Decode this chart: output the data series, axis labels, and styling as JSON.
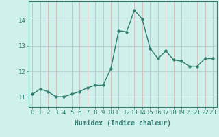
{
  "x": [
    0,
    1,
    2,
    3,
    4,
    5,
    6,
    7,
    8,
    9,
    10,
    11,
    12,
    13,
    14,
    15,
    16,
    17,
    18,
    19,
    20,
    21,
    22,
    23
  ],
  "y": [
    11.1,
    11.3,
    11.2,
    11.0,
    11.0,
    11.1,
    11.2,
    11.35,
    11.45,
    11.45,
    12.1,
    13.6,
    13.55,
    14.4,
    14.05,
    12.9,
    12.5,
    12.8,
    12.45,
    12.4,
    12.2,
    12.2,
    12.5,
    12.5
  ],
  "line_color": "#2e7d6e",
  "bg_color": "#cff0eb",
  "vgrid_color": "#d4b8b8",
  "hgrid_color": "#b8cece",
  "xlabel": "Humidex (Indice chaleur)",
  "ylim": [
    10.6,
    14.75
  ],
  "xlim": [
    -0.5,
    23.5
  ],
  "yticks": [
    11,
    12,
    13,
    14
  ],
  "xtick_labels": [
    "0",
    "1",
    "2",
    "3",
    "4",
    "5",
    "6",
    "7",
    "8",
    "9",
    "10",
    "11",
    "12",
    "13",
    "14",
    "15",
    "16",
    "17",
    "18",
    "19",
    "20",
    "21",
    "22",
    "23"
  ],
  "marker_size": 2.5,
  "linewidth": 1.0,
  "xlabel_fontsize": 7,
  "tick_fontsize": 6.5
}
